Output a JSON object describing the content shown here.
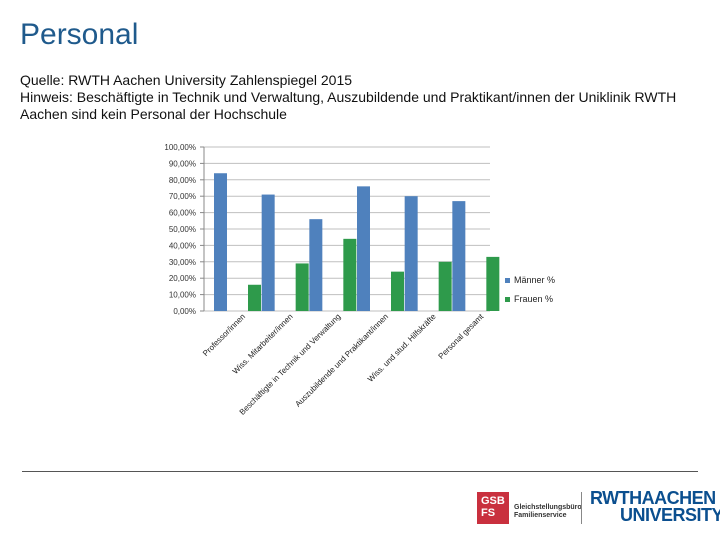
{
  "title": "Personal",
  "notes": {
    "line1": "Quelle: RWTH Aachen University Zahlenspiegel 2015",
    "line2": "Hinweis: Beschäftigte in Technik und Verwaltung, Auszubildende und Praktikant/innen der Uniklinik RWTH Aachen sind kein Personal der Hochschule"
  },
  "chart_data": {
    "type": "bar",
    "categories": [
      "Professor/innen",
      "Wiss. Mitarbeiter/innen",
      "Beschäftigte in Technik und Verwaltung",
      "Auszubildende und Praktikant/innen",
      "Wiss. und stud. Hilfskräfte",
      "Personal gesamt"
    ],
    "series": [
      {
        "name": "Männer %",
        "color": "#4f81bd",
        "values": [
          84,
          71,
          56,
          76,
          70,
          67
        ]
      },
      {
        "name": "Frauen %",
        "color": "#2e9a4b",
        "values": [
          16,
          29,
          44,
          24,
          30,
          33
        ]
      }
    ],
    "y_ticks": [
      "0,00%",
      "10,00%",
      "20,00%",
      "30,00%",
      "40,00%",
      "50,00%",
      "60,00%",
      "70,00%",
      "80,00%",
      "90,00%",
      "100,00%"
    ],
    "ylim": [
      0,
      100
    ],
    "grid": true,
    "legend": "right",
    "title": "",
    "xlabel": "",
    "ylabel": ""
  },
  "footer": {
    "gsb_logo": "GSB\nFS",
    "gsb_name": "Gleichstellungsbüro Familienservice",
    "rwth_line1": "RWTHAACHEN",
    "rwth_line2": "UNIVERSITY"
  }
}
